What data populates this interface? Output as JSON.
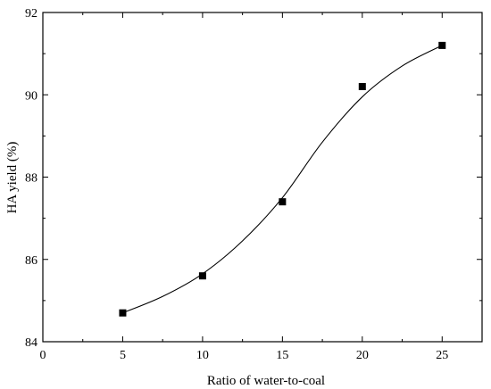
{
  "chart_data": {
    "type": "scatter",
    "xlabel": "Ratio of water-to-coal",
    "ylabel": "HA yield (%)",
    "xlim": [
      0,
      27.5
    ],
    "ylim": [
      84,
      92
    ],
    "xticks": [
      0,
      5,
      10,
      15,
      20,
      25
    ],
    "yticks": [
      84,
      86,
      88,
      90,
      92
    ],
    "x_minor_step": 2.5,
    "y_minor_step": 1,
    "marker": "square",
    "grid": false,
    "series": [
      {
        "x": [
          5,
          10,
          15,
          20,
          25
        ],
        "y": [
          84.7,
          85.6,
          87.4,
          90.2,
          91.2
        ]
      }
    ],
    "fit_curve": {
      "x": [
        5,
        7.5,
        10,
        12.5,
        15,
        17.5,
        20,
        22.5,
        25
      ],
      "y": [
        84.7,
        85.1,
        85.65,
        86.45,
        87.5,
        88.85,
        89.95,
        90.7,
        91.2
      ]
    },
    "colors": {
      "marker": "#000000",
      "line": "#000000",
      "background": "#ffffff"
    }
  }
}
